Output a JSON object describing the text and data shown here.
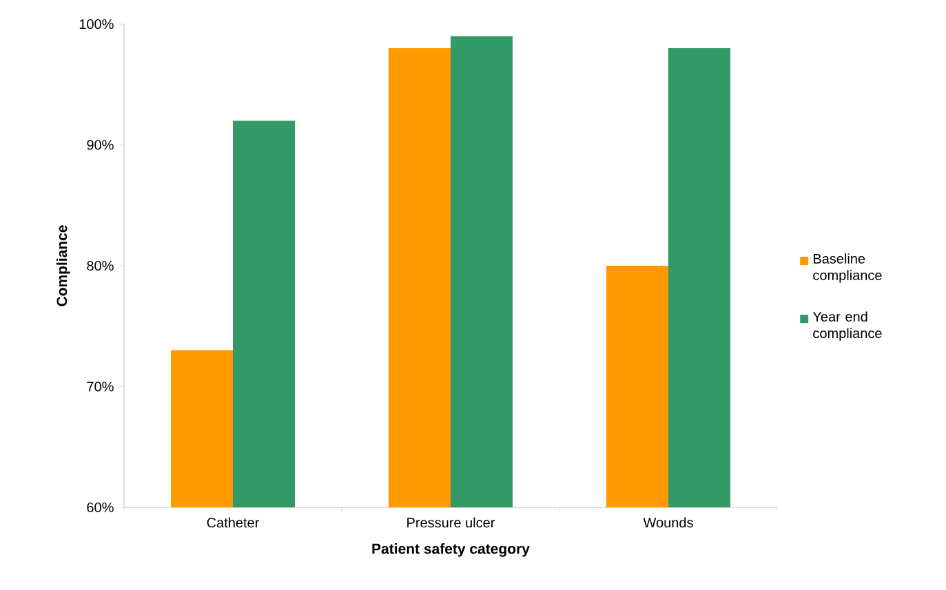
{
  "chart_data": {
    "type": "bar",
    "xlabel": "Patient safety category",
    "ylabel": "Compliance",
    "categories": [
      "Catheter",
      "Pressure ulcer",
      "Wounds"
    ],
    "series": [
      {
        "name": "Baseline compliance",
        "color": "#ff9900",
        "values": [
          73,
          98,
          80
        ]
      },
      {
        "name": "Year end compliance",
        "color": "#339966",
        "values": [
          92,
          99,
          98
        ]
      }
    ],
    "ylim": [
      60,
      100
    ],
    "yticks": [
      {
        "value": 60,
        "label": "60%"
      },
      {
        "value": 70,
        "label": "70%"
      },
      {
        "value": 80,
        "label": "80%"
      },
      {
        "value": 90,
        "label": "90%"
      },
      {
        "value": 100,
        "label": "100%"
      }
    ],
    "grid": false,
    "legend": "right"
  }
}
